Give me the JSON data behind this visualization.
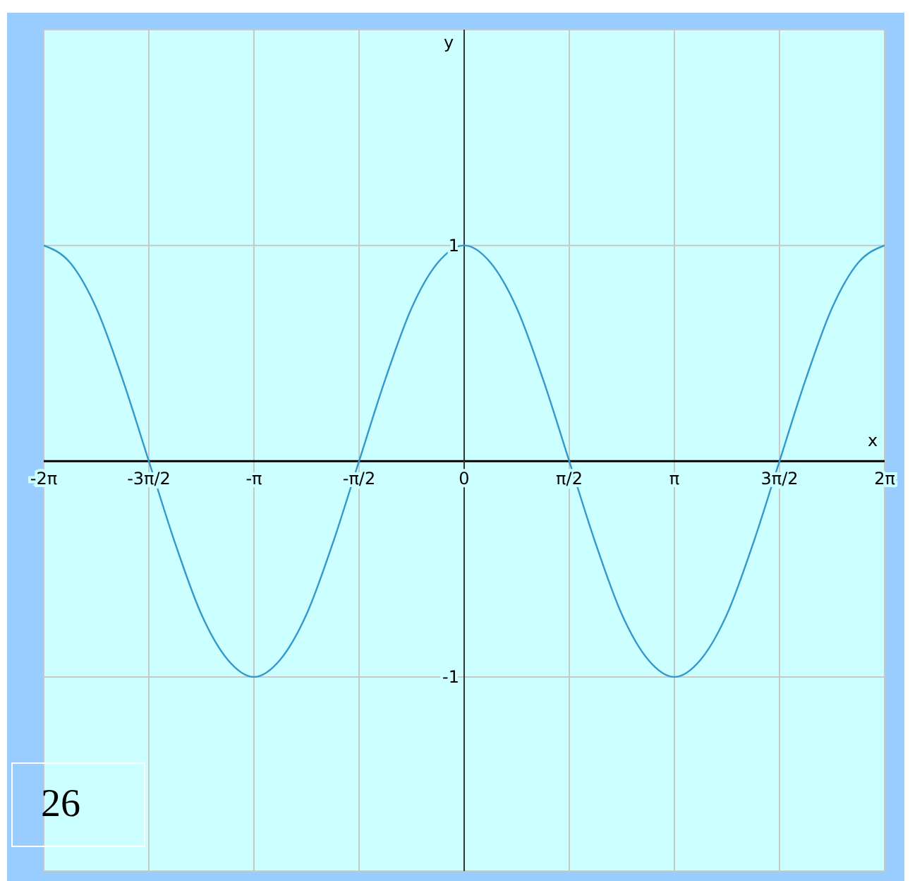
{
  "chart_data": {
    "type": "line",
    "xlabel": "x",
    "ylabel": "y",
    "x": [
      -6.283,
      -5.89,
      -5.498,
      -5.105,
      -4.712,
      -4.32,
      -3.927,
      -3.534,
      -3.142,
      -2.749,
      -2.356,
      -1.963,
      -1.571,
      -1.178,
      -0.785,
      -0.393,
      0,
      0.393,
      0.785,
      1.178,
      1.571,
      1.963,
      2.356,
      2.749,
      3.142,
      3.534,
      3.927,
      4.32,
      4.712,
      5.105,
      5.498,
      5.89,
      6.283
    ],
    "series": [
      {
        "color": "#3399cc",
        "values": [
          1,
          0.92,
          0.71,
          0.38,
          0,
          -0.38,
          -0.71,
          -0.92,
          -1,
          -0.92,
          -0.71,
          -0.38,
          0,
          0.38,
          0.71,
          0.92,
          1,
          0.92,
          0.71,
          0.38,
          0,
          -0.38,
          -0.71,
          -0.92,
          -1,
          -0.92,
          -0.71,
          -0.38,
          0,
          0.38,
          0.71,
          0.92,
          1
        ]
      }
    ],
    "xlim": [
      -6.283,
      6.283
    ],
    "xticks": [
      {
        "value": -6.283,
        "label": "-2π"
      },
      {
        "value": -4.712,
        "label": "-3π/2"
      },
      {
        "value": -3.142,
        "label": "-π"
      },
      {
        "value": -1.571,
        "label": "-π/2"
      },
      {
        "value": 0,
        "label": "0"
      },
      {
        "value": 1.571,
        "label": "π/2"
      },
      {
        "value": 3.142,
        "label": "π"
      },
      {
        "value": 4.712,
        "label": "3π/2"
      },
      {
        "value": 6.283,
        "label": "2π"
      }
    ],
    "ylim": [
      -1.9,
      2
    ],
    "yticks": [
      -1,
      1
    ],
    "grid": true,
    "marker": "none",
    "line_style": "solid",
    "annotations": [
      "26"
    ]
  }
}
